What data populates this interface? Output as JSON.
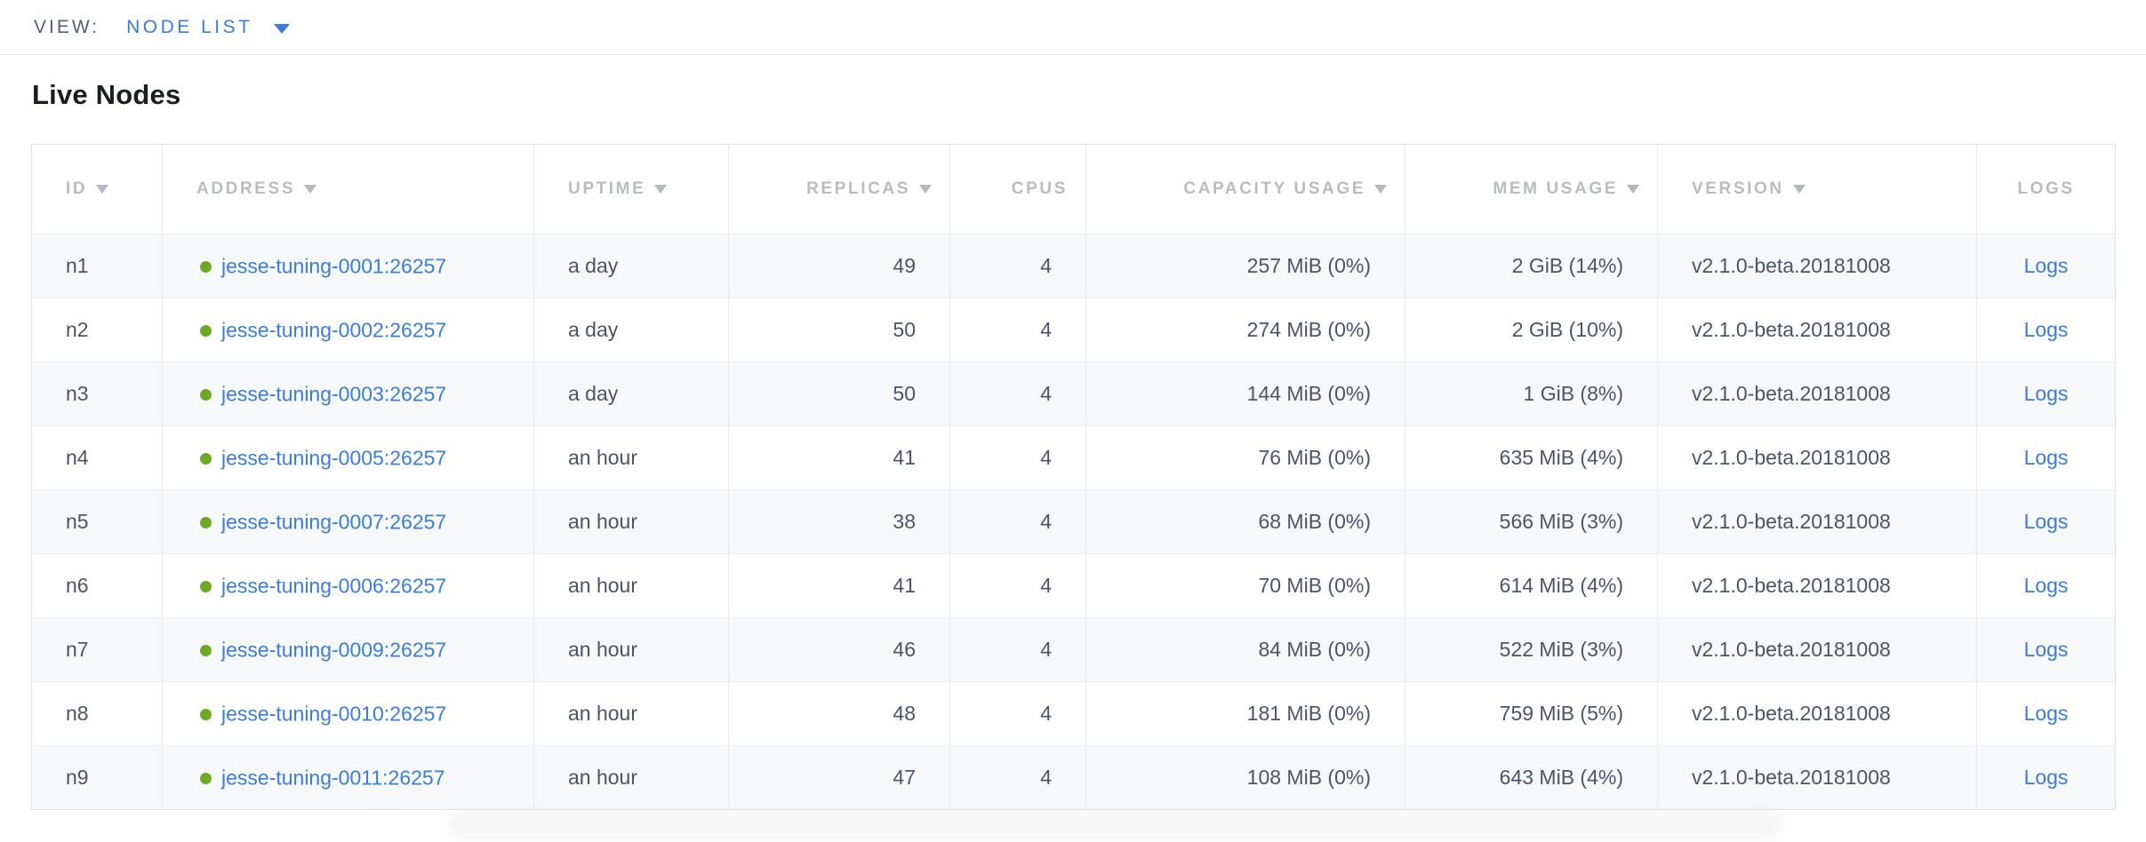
{
  "view_bar": {
    "label": "VIEW:",
    "selected_view": "NODE LIST"
  },
  "page": {
    "title": "Live Nodes"
  },
  "table": {
    "columns": [
      {
        "key": "id",
        "label": "ID",
        "sortable": true,
        "align": "left"
      },
      {
        "key": "address",
        "label": "ADDRESS",
        "sortable": true,
        "align": "left"
      },
      {
        "key": "uptime",
        "label": "UPTIME",
        "sortable": true,
        "align": "left"
      },
      {
        "key": "replicas",
        "label": "REPLICAS",
        "sortable": true,
        "align": "right"
      },
      {
        "key": "cpus",
        "label": "CPUS",
        "sortable": false,
        "align": "right"
      },
      {
        "key": "capacity",
        "label": "CAPACITY USAGE",
        "sortable": true,
        "align": "right"
      },
      {
        "key": "mem",
        "label": "MEM USAGE",
        "sortable": true,
        "align": "right"
      },
      {
        "key": "version",
        "label": "VERSION",
        "sortable": true,
        "align": "left"
      },
      {
        "key": "logs",
        "label": "LOGS",
        "sortable": false,
        "align": "center"
      }
    ],
    "rows": [
      {
        "id": "n1",
        "status": "healthy",
        "address": "jesse-tuning-0001:26257",
        "uptime": "a day",
        "replicas": "49",
        "cpus": "4",
        "capacity": "257 MiB (0%)",
        "mem": "2 GiB (14%)",
        "version": "v2.1.0-beta.20181008",
        "logs": "Logs"
      },
      {
        "id": "n2",
        "status": "healthy",
        "address": "jesse-tuning-0002:26257",
        "uptime": "a day",
        "replicas": "50",
        "cpus": "4",
        "capacity": "274 MiB (0%)",
        "mem": "2 GiB (10%)",
        "version": "v2.1.0-beta.20181008",
        "logs": "Logs"
      },
      {
        "id": "n3",
        "status": "healthy",
        "address": "jesse-tuning-0003:26257",
        "uptime": "a day",
        "replicas": "50",
        "cpus": "4",
        "capacity": "144 MiB (0%)",
        "mem": "1 GiB (8%)",
        "version": "v2.1.0-beta.20181008",
        "logs": "Logs"
      },
      {
        "id": "n4",
        "status": "healthy",
        "address": "jesse-tuning-0005:26257",
        "uptime": "an hour",
        "replicas": "41",
        "cpus": "4",
        "capacity": "76 MiB (0%)",
        "mem": "635 MiB (4%)",
        "version": "v2.1.0-beta.20181008",
        "logs": "Logs"
      },
      {
        "id": "n5",
        "status": "healthy",
        "address": "jesse-tuning-0007:26257",
        "uptime": "an hour",
        "replicas": "38",
        "cpus": "4",
        "capacity": "68 MiB (0%)",
        "mem": "566 MiB (3%)",
        "version": "v2.1.0-beta.20181008",
        "logs": "Logs"
      },
      {
        "id": "n6",
        "status": "healthy",
        "address": "jesse-tuning-0006:26257",
        "uptime": "an hour",
        "replicas": "41",
        "cpus": "4",
        "capacity": "70 MiB (0%)",
        "mem": "614 MiB (4%)",
        "version": "v2.1.0-beta.20181008",
        "logs": "Logs"
      },
      {
        "id": "n7",
        "status": "healthy",
        "address": "jesse-tuning-0009:26257",
        "uptime": "an hour",
        "replicas": "46",
        "cpus": "4",
        "capacity": "84 MiB (0%)",
        "mem": "522 MiB (3%)",
        "version": "v2.1.0-beta.20181008",
        "logs": "Logs"
      },
      {
        "id": "n8",
        "status": "healthy",
        "address": "jesse-tuning-0010:26257",
        "uptime": "an hour",
        "replicas": "48",
        "cpus": "4",
        "capacity": "181 MiB (0%)",
        "mem": "759 MiB (5%)",
        "version": "v2.1.0-beta.20181008",
        "logs": "Logs"
      },
      {
        "id": "n9",
        "status": "healthy",
        "address": "jesse-tuning-0011:26257",
        "uptime": "an hour",
        "replicas": "47",
        "cpus": "4",
        "capacity": "108 MiB (0%)",
        "mem": "643 MiB (4%)",
        "version": "v2.1.0-beta.20181008",
        "logs": "Logs"
      }
    ]
  },
  "colors": {
    "link": "#3a7ce0",
    "muted_label": "#555e73",
    "header_text": "#b9bcc1",
    "cell_text": "#4d5468",
    "healthy": "#6fa824",
    "row_stripe": "#f7f8f9",
    "border": "#e6e6e8"
  }
}
